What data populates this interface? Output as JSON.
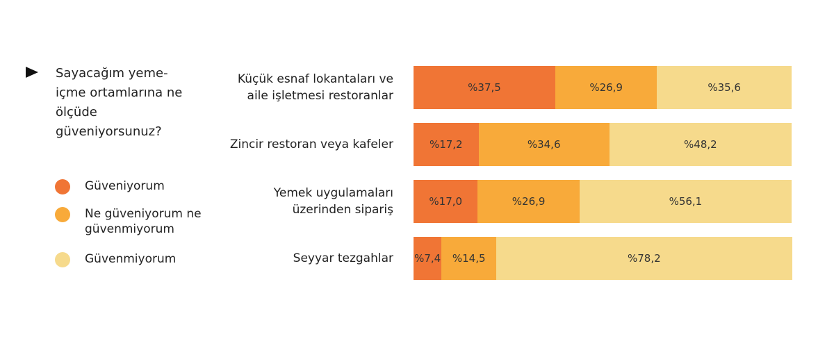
{
  "chart_data": {
    "type": "stacked_bar",
    "orientation": "horizontal",
    "title": "Sayacağım yeme-içme ortamlarına ne ölçüde güveniyorsunuz?",
    "categories": [
      "Küçük esnaf lokantaları ve aile işletmesi restoranlar",
      "Zincir restoran veya kafeler",
      "Yemek uygulamaları üzerinden sipariş",
      "Seyyar tezgahlar"
    ],
    "series": [
      {
        "name": "Güveniyorum",
        "color": "#f07535",
        "values": [
          37.5,
          17.2,
          17.0,
          7.4
        ],
        "value_labels": [
          "%37,5",
          "%17,2",
          "%17,0",
          "%7,4"
        ]
      },
      {
        "name": "Ne güveniyorum ne güvenmiyorum",
        "color": "#f8aa3a",
        "values": [
          26.9,
          34.6,
          26.9,
          14.5
        ],
        "value_labels": [
          "%26,9",
          "%34,6",
          "%26,9",
          "%14,5"
        ]
      },
      {
        "name": "Güvenmiyorum",
        "color": "#f6da8c",
        "values": [
          35.6,
          48.2,
          56.1,
          78.2
        ],
        "value_labels": [
          "%35,6",
          "%48,2",
          "%56,1",
          "%78,2"
        ]
      }
    ],
    "xlim": [
      0,
      100
    ]
  }
}
